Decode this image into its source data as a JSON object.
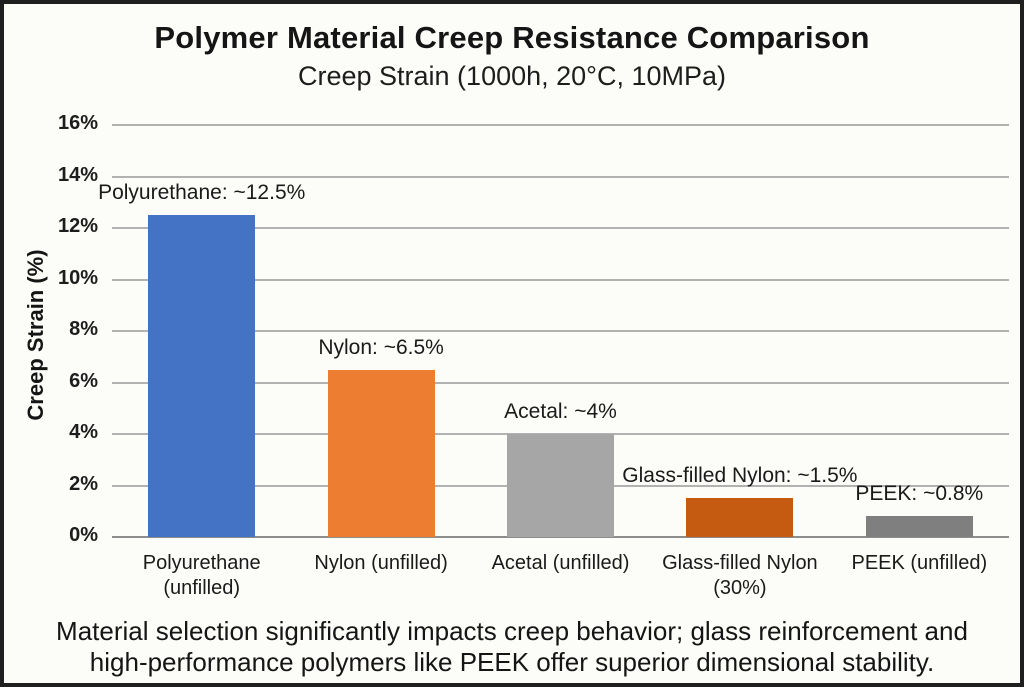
{
  "title": "Polymer Material Creep Resistance Comparison",
  "subtitle": "Creep Strain (1000h, 20°C, 10MPa)",
  "caption": "Material selection significantly impacts creep behavior; glass reinforcement and high-performance polymers like PEEK offer superior dimensional stability.",
  "chart_data": {
    "type": "bar",
    "title": "Polymer Material Creep Resistance Comparison",
    "subtitle": "Creep Strain (1000h, 20°C, 10MPa)",
    "xlabel": "",
    "ylabel": "Creep Strain (%)",
    "ylim": [
      0,
      16
    ],
    "ytick_step": 2,
    "ytick_labels": [
      "0%",
      "2%",
      "4%",
      "6%",
      "8%",
      "10%",
      "12%",
      "14%",
      "16%"
    ],
    "grid": true,
    "legend": "none",
    "categories": [
      "Polyurethane (unfilled)",
      "Nylon (unfilled)",
      "Acetal (unfilled)",
      "Glass-filled Nylon (30%)",
      "PEEK (unfilled)"
    ],
    "values": [
      12.5,
      6.5,
      4,
      1.5,
      0.8
    ],
    "bar_labels": [
      "Polyurethane: ~12.5%",
      "Nylon: ~6.5%",
      "Acetal: ~4%",
      "Glass-filled Nylon: ~1.5%",
      "PEEK: ~0.8%"
    ],
    "bar_colors": [
      "#4472C4",
      "#ED7D31",
      "#A6A6A6",
      "#C55A11",
      "#7F7F7F"
    ]
  }
}
